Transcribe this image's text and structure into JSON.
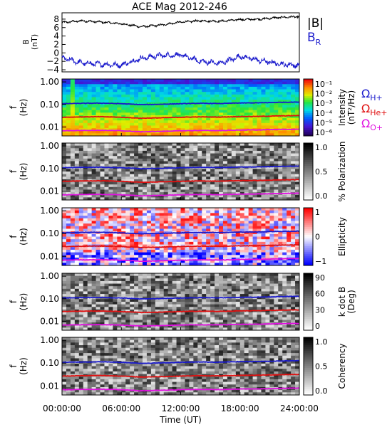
{
  "chart_data": [
    {
      "type": "line",
      "title": "ACE Mag 2012-246",
      "ylabel_top": "B",
      "ylabel_unit": "(nT)",
      "ylim": [
        -4.5,
        9.5
      ],
      "yticks": [
        8,
        6,
        4,
        2,
        0,
        -2,
        -4
      ],
      "x": [
        0,
        2,
        4,
        6,
        8,
        10,
        12,
        14,
        16,
        18,
        20,
        22,
        24
      ],
      "series": [
        {
          "name": "|B|",
          "color": "#000000",
          "values": [
            7.2,
            7.6,
            7.3,
            6.9,
            6.2,
            6.6,
            7.3,
            7.6,
            7.5,
            7.9,
            8.0,
            8.4,
            8.6
          ]
        },
        {
          "name": "B_R",
          "color": "#1a1acc",
          "values": [
            -1.2,
            -2.4,
            -2.7,
            -2.9,
            -1.3,
            -0.6,
            -0.5,
            -2.0,
            -2.5,
            -0.8,
            -1.8,
            -2.6,
            -3.0
          ]
        }
      ],
      "legend": [
        "|B|",
        "B_R"
      ]
    },
    {
      "type": "heatmap",
      "ylabel": "f",
      "ylabel_unit": "(Hz)",
      "yticks": [
        "1.00",
        "0.10",
        "0.01"
      ],
      "colorbar": {
        "label": "Intensity",
        "unit": "(nT²/Hz)",
        "ticks": [
          "10⁻¹",
          "10⁻²",
          "10⁻³",
          "10⁻⁴",
          "10⁻⁵",
          "10⁻⁶"
        ],
        "scale": "rainbow"
      },
      "gyro_legend": [
        {
          "label": "Ω",
          "sub": "H+",
          "color": "#1a1acc"
        },
        {
          "label": "Ω",
          "sub": "He+",
          "color": "#e01010"
        },
        {
          "label": "Ω",
          "sub": "O+",
          "color": "#e010e0"
        }
      ]
    },
    {
      "type": "heatmap",
      "ylabel": "f",
      "ylabel_unit": "(Hz)",
      "yticks": [
        "1.00",
        "0.10",
        "0.01"
      ],
      "colorbar": {
        "label": "% Polarization",
        "ticks": [
          "1.0",
          "0.5",
          "0.0"
        ],
        "scale": "gray"
      }
    },
    {
      "type": "heatmap",
      "ylabel": "f",
      "ylabel_unit": "(Hz)",
      "yticks": [
        "1.00",
        "0.10",
        "0.01"
      ],
      "colorbar": {
        "label": "Ellipticity",
        "ticks": [
          "1",
          "0",
          "−1"
        ],
        "scale": "bwr"
      }
    },
    {
      "type": "heatmap",
      "ylabel": "f",
      "ylabel_unit": "(Hz)",
      "yticks": [
        "1.00",
        "0.10",
        "0.01"
      ],
      "colorbar": {
        "label": "k dot B",
        "unit": "(Deg)",
        "ticks": [
          "90",
          "60",
          "30",
          "0"
        ],
        "scale": "gray"
      }
    },
    {
      "type": "heatmap",
      "ylabel": "f",
      "ylabel_unit": "(Hz)",
      "yticks": [
        "1.00",
        "0.10",
        "0.01"
      ],
      "colorbar": {
        "label": "Coherency",
        "ticks": [
          "1.0",
          "0.5",
          "0.0"
        ],
        "scale": "gray"
      }
    }
  ],
  "gyro_lines": {
    "x": [
      0,
      2,
      4,
      6,
      8,
      10,
      12,
      14,
      16,
      18,
      20,
      22,
      24
    ],
    "H": [
      0.108,
      0.112,
      0.114,
      0.108,
      0.098,
      0.102,
      0.108,
      0.112,
      0.11,
      0.116,
      0.118,
      0.124,
      0.128
    ],
    "He": [
      0.027,
      0.028,
      0.0285,
      0.027,
      0.0245,
      0.0255,
      0.027,
      0.028,
      0.0275,
      0.029,
      0.0295,
      0.031,
      0.032
    ],
    "O": [
      0.0068,
      0.007,
      0.0071,
      0.0068,
      0.0061,
      0.0064,
      0.0068,
      0.007,
      0.0069,
      0.0073,
      0.0074,
      0.0078,
      0.008
    ]
  },
  "xaxis": {
    "ticks": [
      "00:00:00",
      "06:00:00",
      "12:00:00",
      "18:00:00",
      "24:00:00"
    ],
    "label": "Time (UT)"
  }
}
